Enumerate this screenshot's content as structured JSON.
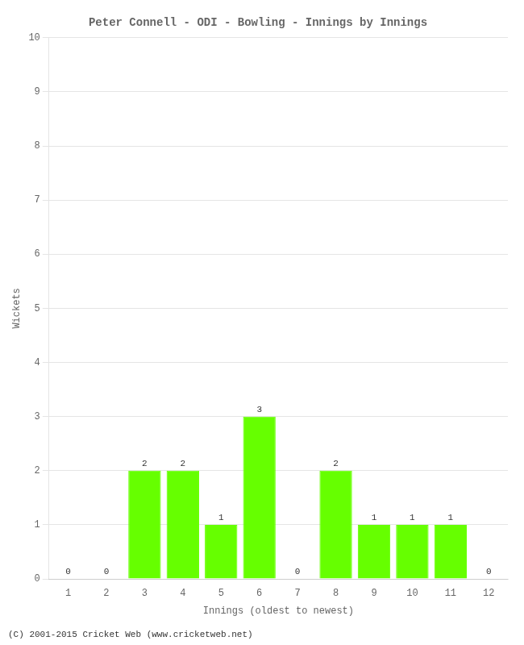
{
  "chart_data": {
    "type": "bar",
    "title": "Peter Connell - ODI - Bowling - Innings by Innings",
    "x_label": "Innings (oldest to newest)",
    "y_label": "Wickets",
    "categories": [
      1,
      2,
      3,
      4,
      5,
      6,
      7,
      8,
      9,
      10,
      11,
      12
    ],
    "values": [
      0,
      0,
      2,
      2,
      1,
      3,
      0,
      2,
      1,
      1,
      1,
      0
    ],
    "color": "#66ff00",
    "ylim": [
      0,
      10
    ],
    "yticks": [
      0,
      1,
      2,
      3,
      4,
      5,
      6,
      7,
      8,
      9,
      10
    ],
    "grid": true,
    "data_labels": true,
    "annotations": [
      "(C) 2001-2015 Cricket Web (www.cricketweb.net)"
    ]
  }
}
